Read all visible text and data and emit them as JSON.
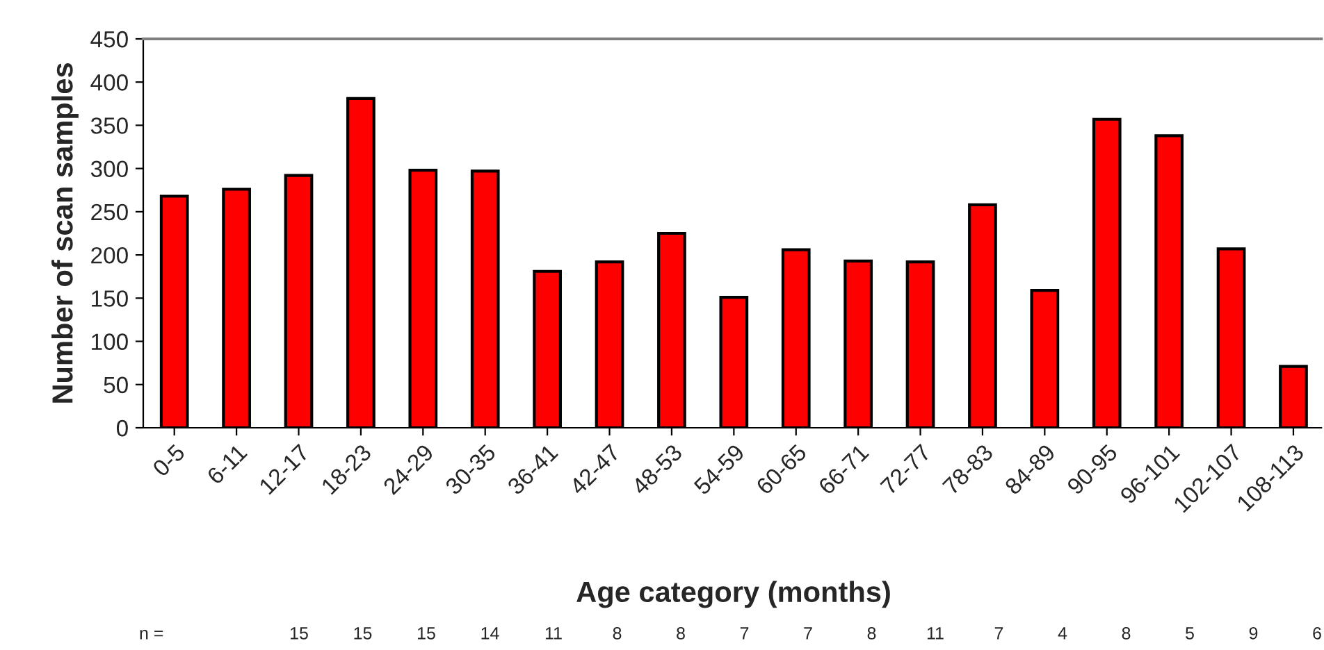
{
  "chart_data": {
    "type": "bar",
    "xlabel": "Age category (months)",
    "ylabel": "Number of scan samples",
    "categories": [
      "0-5",
      "6-11",
      "12-17",
      "18-23",
      "24-29",
      "30-35",
      "36-41",
      "42-47",
      "48-53",
      "54-59",
      "60-65",
      "66-71",
      "72-77",
      "78-83",
      "84-89",
      "90-95",
      "96-101",
      "102-107",
      "108-113"
    ],
    "values": [
      268,
      276,
      292,
      381,
      298,
      297,
      181,
      192,
      225,
      151,
      206,
      193,
      192,
      258,
      159,
      357,
      338,
      207,
      71
    ],
    "color": "#ff0000",
    "ylim": [
      0,
      450
    ],
    "yticks": [
      0,
      50,
      100,
      150,
      200,
      250,
      300,
      350,
      400,
      450
    ],
    "grid": false,
    "annotations": [
      "n =   15   15   15   14   11   8   8   7   7   8   11   7   4   8   5   9   6"
    ]
  }
}
